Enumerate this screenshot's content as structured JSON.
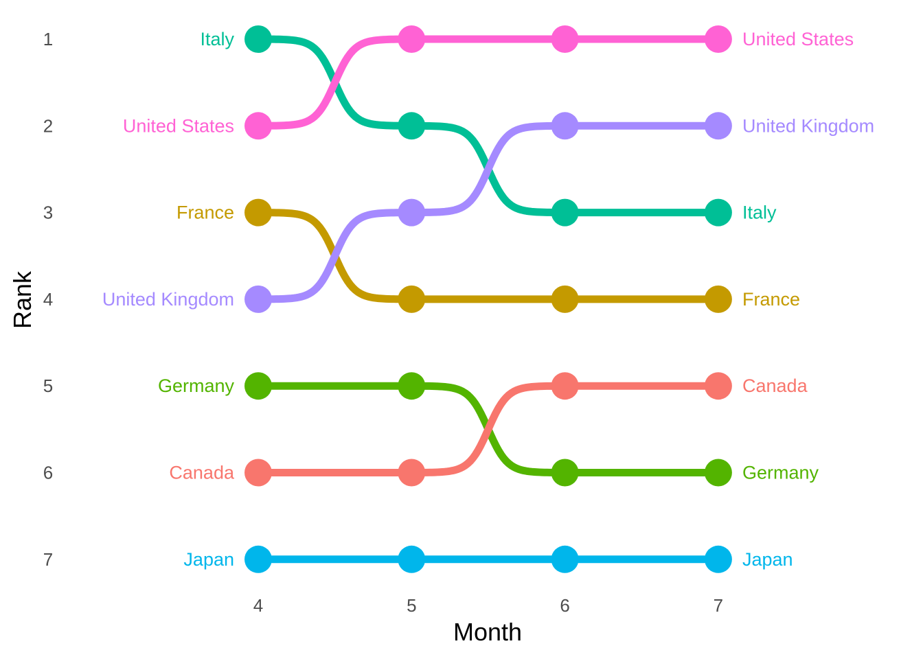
{
  "chart_data": {
    "type": "line",
    "subtype": "bump",
    "title": "",
    "xlabel": "Month",
    "ylabel": "Rank",
    "x": [
      4,
      5,
      6,
      7
    ],
    "x_ticks": [
      "4",
      "5",
      "6",
      "7"
    ],
    "y_ticks": [
      "1",
      "2",
      "3",
      "4",
      "5",
      "6",
      "7"
    ],
    "ylim": [
      1,
      7
    ],
    "y_reversed": true,
    "grid": false,
    "legend": "none (direct labels at both ends)",
    "series": [
      {
        "name": "Italy",
        "color": "#00BF96",
        "values": [
          1,
          2,
          3,
          3
        ]
      },
      {
        "name": "United States",
        "color": "#FF62D4",
        "values": [
          2,
          1,
          1,
          1
        ]
      },
      {
        "name": "France",
        "color": "#C49A00",
        "values": [
          3,
          4,
          4,
          4
        ]
      },
      {
        "name": "United Kingdom",
        "color": "#A58AFF",
        "values": [
          4,
          3,
          2,
          2
        ]
      },
      {
        "name": "Germany",
        "color": "#53B400",
        "values": [
          5,
          5,
          6,
          6
        ]
      },
      {
        "name": "Canada",
        "color": "#F8766D",
        "values": [
          6,
          6,
          5,
          5
        ]
      },
      {
        "name": "Japan",
        "color": "#00B6EB",
        "values": [
          7,
          7,
          7,
          7
        ]
      }
    ]
  }
}
